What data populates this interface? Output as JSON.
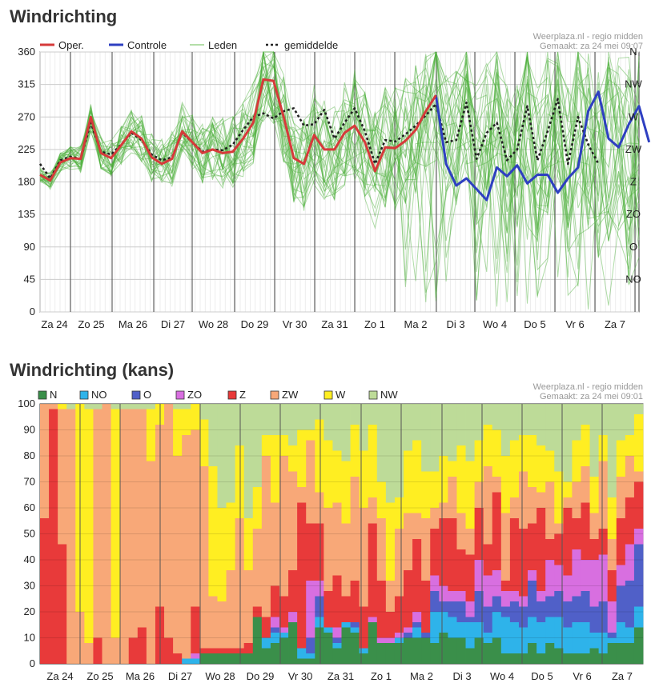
{
  "chart1": {
    "title": "Windrichting",
    "source": "Weerplaza.nl - regio midden",
    "made": "Gemaakt: za 24 mei 09:07",
    "legend": [
      "Oper.",
      "Controle",
      "Leden",
      "gemiddelde"
    ],
    "colors": {
      "oper": "#d63a3a",
      "controle": "#2e3fc1",
      "leden": "#4caf3a",
      "avg": "#222222"
    },
    "chart_data": {
      "type": "line",
      "ylim": [
        0,
        360
      ],
      "yticks": [
        0,
        45,
        90,
        135,
        180,
        225,
        270,
        315,
        360
      ],
      "right_labels": [
        [
          "N",
          360
        ],
        [
          "NW",
          315
        ],
        [
          "W",
          270
        ],
        [
          "ZW",
          225
        ],
        [
          "Z",
          180
        ],
        [
          "ZO",
          135
        ],
        [
          "O",
          90
        ],
        [
          "NO",
          45
        ]
      ],
      "days": [
        "Za 24",
        "Zo 25",
        "Ma 26",
        "Di 27",
        "Wo 28",
        "Do 29",
        "Vr 30",
        "Za 31",
        "Zo 1",
        "Ma 2",
        "Di 3",
        "Wo 4",
        "Do 5",
        "Vr 6",
        "Za 7"
      ],
      "series": [
        {
          "name": "Oper.",
          "values": [
            190,
            182,
            207,
            213,
            212,
            270,
            220,
            213,
            231,
            250,
            240,
            214,
            205,
            212,
            250,
            235,
            220,
            225,
            220,
            222,
            240,
            262,
            322,
            320,
            270,
            213,
            205,
            245,
            225,
            225,
            248,
            258,
            235,
            195,
            228,
            227,
            237,
            252,
            278,
            300
          ]
        },
        {
          "name": "Controle",
          "values": [
            null,
            null,
            null,
            null,
            null,
            null,
            null,
            null,
            null,
            null,
            null,
            null,
            null,
            null,
            null,
            null,
            null,
            null,
            null,
            null,
            null,
            null,
            null,
            null,
            null,
            null,
            null,
            null,
            null,
            null,
            null,
            null,
            null,
            null,
            null,
            null,
            null,
            null,
            null,
            300,
            205,
            175,
            185,
            170,
            155,
            200,
            188,
            203,
            178,
            190,
            190,
            165,
            185,
            200,
            278,
            305,
            240,
            228,
            260,
            285,
            235
          ]
        },
        {
          "name": "gemiddelde",
          "values": [
            205,
            185,
            210,
            215,
            212,
            262,
            222,
            218,
            232,
            248,
            238,
            218,
            210,
            214,
            248,
            235,
            222,
            225,
            224,
            232,
            252,
            270,
            275,
            268,
            278,
            282,
            258,
            260,
            280,
            240,
            262,
            282,
            250,
            205,
            238,
            236,
            246,
            258,
            272,
            288,
            235,
            238,
            290,
            212,
            248,
            262,
            210,
            225,
            285,
            210,
            250,
            295,
            205,
            270,
            232,
            205
          ]
        },
        {
          "name": "Leden",
          "values": []
        }
      ]
    }
  },
  "chart2": {
    "title": "Windrichting (kans)",
    "source": "Weerplaza.nl - regio midden",
    "made": "Gemaakt: za 24 mei 09:01",
    "legend": [
      "N",
      "NO",
      "O",
      "ZO",
      "Z",
      "ZW",
      "W",
      "NW"
    ],
    "colors": {
      "N": "#3a8f4a",
      "NO": "#2eb3ea",
      "O": "#5060c8",
      "ZO": "#d86fe0",
      "Z": "#e83a3a",
      "ZW": "#f8a878",
      "W": "#ffee22",
      "NW": "#bddb98"
    },
    "chart_data": {
      "type": "stacked-bar",
      "ylim": [
        0,
        100
      ],
      "yticks": [
        0,
        10,
        20,
        30,
        40,
        50,
        60,
        70,
        80,
        90,
        100
      ],
      "days": [
        "Za 24",
        "Zo 25",
        "Ma 26",
        "Di 27",
        "Wo 28",
        "Do 29",
        "Vr 30",
        "Za 31",
        "Zo 1",
        "Ma 2",
        "Di 3",
        "Wo 4",
        "Do 5",
        "Vr 6",
        "Za 7"
      ],
      "categories": [
        "N",
        "NO",
        "O",
        "ZO",
        "Z",
        "ZW",
        "W",
        "NW"
      ],
      "bars": [
        [
          0,
          0,
          0,
          0,
          56,
          44,
          0,
          0
        ],
        [
          0,
          0,
          0,
          0,
          98,
          2,
          0,
          0
        ],
        [
          0,
          0,
          0,
          0,
          46,
          52,
          2,
          0
        ],
        [
          0,
          0,
          0,
          0,
          0,
          98,
          0,
          2
        ],
        [
          0,
          0,
          0,
          0,
          0,
          20,
          80,
          0
        ],
        [
          0,
          0,
          0,
          0,
          0,
          8,
          90,
          2
        ],
        [
          0,
          0,
          0,
          0,
          10,
          88,
          0,
          2
        ],
        [
          0,
          0,
          0,
          0,
          0,
          100,
          0,
          0
        ],
        [
          0,
          0,
          0,
          0,
          0,
          10,
          88,
          2
        ],
        [
          0,
          0,
          0,
          0,
          0,
          98,
          0,
          2
        ],
        [
          0,
          0,
          0,
          0,
          10,
          88,
          0,
          2
        ],
        [
          0,
          0,
          0,
          0,
          14,
          84,
          0,
          2
        ],
        [
          0,
          0,
          0,
          0,
          0,
          78,
          20,
          2
        ],
        [
          0,
          0,
          0,
          0,
          22,
          70,
          8,
          0
        ],
        [
          0,
          0,
          0,
          0,
          10,
          90,
          0,
          0
        ],
        [
          0,
          0,
          0,
          0,
          4,
          76,
          18,
          2
        ],
        [
          0,
          2,
          0,
          0,
          0,
          86,
          10,
          2
        ],
        [
          0,
          2,
          0,
          2,
          18,
          68,
          10,
          0
        ],
        [
          4,
          0,
          0,
          0,
          2,
          70,
          18,
          6
        ],
        [
          4,
          0,
          0,
          0,
          2,
          20,
          50,
          24
        ],
        [
          4,
          0,
          0,
          0,
          2,
          18,
          36,
          40
        ],
        [
          4,
          0,
          0,
          0,
          2,
          30,
          26,
          38
        ],
        [
          4,
          0,
          0,
          0,
          2,
          50,
          28,
          16
        ],
        [
          4,
          0,
          0,
          0,
          4,
          28,
          20,
          44
        ],
        [
          18,
          0,
          0,
          0,
          4,
          30,
          16,
          32
        ],
        [
          6,
          4,
          0,
          0,
          8,
          62,
          8,
          12
        ],
        [
          8,
          4,
          2,
          4,
          12,
          32,
          26,
          12
        ],
        [
          10,
          2,
          0,
          2,
          12,
          54,
          8,
          12
        ],
        [
          16,
          0,
          0,
          4,
          16,
          38,
          10,
          16
        ],
        [
          2,
          4,
          0,
          0,
          56,
          6,
          22,
          10
        ],
        [
          2,
          2,
          6,
          22,
          22,
          32,
          4,
          10
        ],
        [
          14,
          4,
          8,
          6,
          22,
          12,
          28,
          6
        ],
        [
          12,
          2,
          0,
          0,
          14,
          32,
          26,
          14
        ],
        [
          6,
          2,
          2,
          4,
          20,
          28,
          20,
          18
        ],
        [
          14,
          2,
          0,
          0,
          10,
          28,
          24,
          22
        ],
        [
          12,
          2,
          2,
          0,
          16,
          40,
          20,
          8
        ],
        [
          4,
          2,
          0,
          0,
          16,
          38,
          22,
          18
        ],
        [
          16,
          0,
          0,
          2,
          36,
          10,
          28,
          8
        ],
        [
          8,
          0,
          0,
          2,
          22,
          24,
          14,
          30
        ],
        [
          8,
          0,
          0,
          2,
          10,
          12,
          30,
          38
        ],
        [
          8,
          2,
          0,
          2,
          14,
          26,
          12,
          36
        ],
        [
          10,
          0,
          2,
          2,
          22,
          22,
          24,
          18
        ],
        [
          10,
          4,
          2,
          4,
          28,
          10,
          28,
          14
        ],
        [
          10,
          0,
          2,
          0,
          20,
          24,
          18,
          26
        ],
        [
          8,
          12,
          8,
          6,
          18,
          8,
          14,
          26
        ],
        [
          12,
          8,
          4,
          6,
          26,
          6,
          18,
          20
        ],
        [
          10,
          8,
          6,
          4,
          28,
          16,
          6,
          22
        ],
        [
          10,
          6,
          8,
          4,
          16,
          14,
          26,
          16
        ],
        [
          6,
          10,
          2,
          6,
          18,
          10,
          26,
          22
        ],
        [
          10,
          6,
          12,
          12,
          20,
          10,
          16,
          14
        ],
        [
          8,
          4,
          10,
          12,
          12,
          30,
          16,
          8
        ],
        [
          10,
          10,
          6,
          10,
          30,
          6,
          18,
          10
        ],
        [
          4,
          14,
          4,
          6,
          4,
          26,
          22,
          20
        ],
        [
          4,
          12,
          8,
          4,
          28,
          8,
          22,
          14
        ],
        [
          4,
          10,
          8,
          4,
          26,
          22,
          14,
          12
        ],
        [
          8,
          10,
          14,
          4,
          18,
          14,
          20,
          12
        ],
        [
          4,
          12,
          8,
          4,
          32,
          6,
          18,
          16
        ],
        [
          8,
          10,
          8,
          14,
          8,
          22,
          12,
          18
        ],
        [
          6,
          12,
          10,
          10,
          12,
          4,
          20,
          26
        ],
        [
          4,
          10,
          10,
          10,
          26,
          4,
          6,
          30
        ],
        [
          4,
          12,
          10,
          18,
          12,
          14,
          16,
          14
        ],
        [
          4,
          12,
          12,
          12,
          22,
          14,
          16,
          8
        ],
        [
          6,
          6,
          10,
          18,
          8,
          10,
          14,
          28
        ],
        [
          4,
          8,
          12,
          18,
          10,
          26,
          10,
          12
        ],
        [
          8,
          2,
          2,
          12,
          12,
          12,
          16,
          36
        ],
        [
          8,
          8,
          14,
          8,
          18,
          16,
          14,
          14
        ],
        [
          8,
          6,
          18,
          14,
          18,
          16,
          8,
          12
        ],
        [
          14,
          8,
          24,
          6,
          18,
          4,
          22,
          4
        ]
      ]
    }
  }
}
